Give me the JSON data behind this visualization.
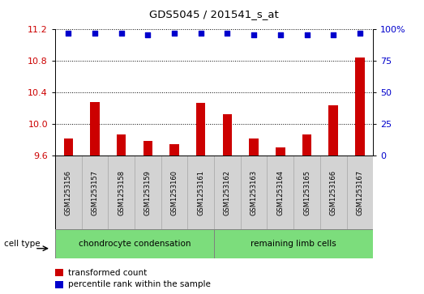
{
  "title": "GDS5045 / 201541_s_at",
  "samples": [
    "GSM1253156",
    "GSM1253157",
    "GSM1253158",
    "GSM1253159",
    "GSM1253160",
    "GSM1253161",
    "GSM1253162",
    "GSM1253163",
    "GSM1253164",
    "GSM1253165",
    "GSM1253166",
    "GSM1253167"
  ],
  "transformed_counts": [
    9.82,
    10.28,
    9.87,
    9.79,
    9.75,
    10.27,
    10.13,
    9.82,
    9.71,
    9.87,
    10.24,
    10.84
  ],
  "percentile_ranks": [
    97,
    97,
    97,
    96,
    97,
    97,
    97,
    96,
    96,
    96,
    96,
    97
  ],
  "ylim_left": [
    9.6,
    11.2
  ],
  "ylim_right": [
    0,
    100
  ],
  "yticks_left": [
    9.6,
    10.0,
    10.4,
    10.8,
    11.2
  ],
  "yticks_right": [
    0,
    25,
    50,
    75,
    100
  ],
  "ytick_labels_right": [
    "0",
    "25",
    "50",
    "75",
    "100%"
  ],
  "bar_color": "#cc0000",
  "dot_color": "#0000cc",
  "cell_type_groups": [
    {
      "label": "chondrocyte condensation",
      "indices": [
        0,
        1,
        2,
        3,
        4,
        5
      ],
      "color": "#7CDD7C"
    },
    {
      "label": "remaining limb cells",
      "indices": [
        6,
        7,
        8,
        9,
        10,
        11
      ],
      "color": "#7CDD7C"
    }
  ],
  "cell_type_label": "cell type",
  "legend_items": [
    {
      "color": "#cc0000",
      "label": "transformed count"
    },
    {
      "color": "#0000cc",
      "label": "percentile rank within the sample"
    }
  ],
  "background_bar_color": "#d3d3d3",
  "bar_border_color": "#aaaaaa",
  "plot_bg": "#ffffff"
}
